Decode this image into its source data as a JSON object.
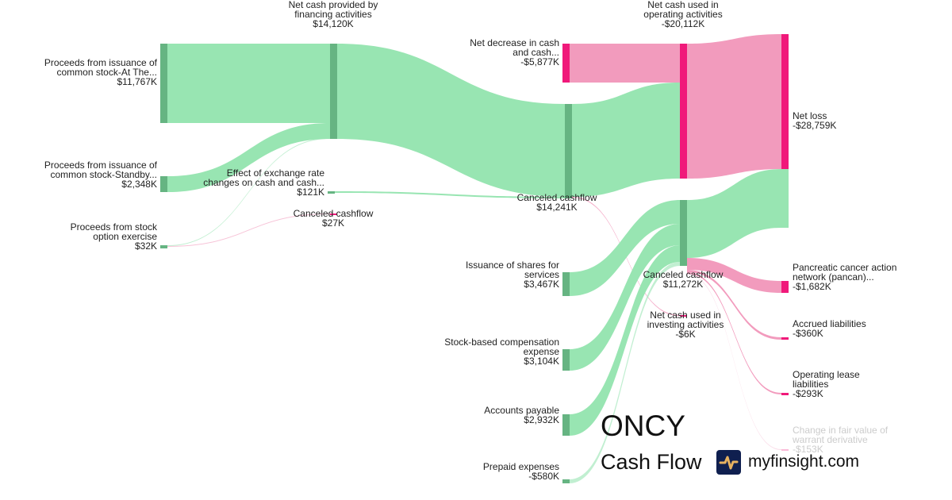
{
  "chart_data": {
    "type": "sankey",
    "title": "ONCY",
    "subtitle": "Cash Flow",
    "colors": {
      "inflow_link": "#98e5b2",
      "inflow_node": "#66b482",
      "outflow_link": "#f29bbd",
      "outflow_node": "#f0197a"
    },
    "nodes": [
      {
        "id": "atm",
        "lines": [
          "Proceeds from issuance of",
          "common stock-At The..."
        ],
        "value": "$11,767K"
      },
      {
        "id": "standby",
        "lines": [
          "Proceeds from issuance of",
          "common stock-Standby..."
        ],
        "value": "$2,348K"
      },
      {
        "id": "option",
        "lines": [
          "Proceeds from stock",
          "option exercise"
        ],
        "value": "$32K"
      },
      {
        "id": "financing",
        "lines": [
          "Net cash provided by",
          "financing activities"
        ],
        "value": "$14,120K"
      },
      {
        "id": "fx",
        "lines": [
          "Effect of exchange rate",
          "changes on cash and cash..."
        ],
        "value": "$121K"
      },
      {
        "id": "canceled27",
        "lines": [
          "Canceled cashflow"
        ],
        "value": "$27K"
      },
      {
        "id": "decrease",
        "lines": [
          "Net decrease in cash",
          "and cash..."
        ],
        "value": "-$5,877K"
      },
      {
        "id": "canceled14241",
        "lines": [
          "Canceled cashflow"
        ],
        "value": "$14,241K"
      },
      {
        "id": "issuance",
        "lines": [
          "Issuance of shares for",
          "services"
        ],
        "value": "$3,467K"
      },
      {
        "id": "sbc",
        "lines": [
          "Stock-based compensation",
          "expense"
        ],
        "value": "$3,104K"
      },
      {
        "id": "ap",
        "lines": [
          "Accounts payable"
        ],
        "value": "$2,932K"
      },
      {
        "id": "prepaid",
        "lines": [
          "Prepaid expenses"
        ],
        "value": "-$580K"
      },
      {
        "id": "operating",
        "lines": [
          "Net cash used in",
          "operating activities"
        ],
        "value": "-$20,112K"
      },
      {
        "id": "canceled11272",
        "lines": [
          "Canceled cashflow"
        ],
        "value": "$11,272K"
      },
      {
        "id": "investing",
        "lines": [
          "Net cash used in",
          "investing activities"
        ],
        "value": "-$6K"
      },
      {
        "id": "netloss",
        "lines": [
          "Net loss"
        ],
        "value": "-$28,759K"
      },
      {
        "id": "pancan",
        "lines": [
          "Pancreatic cancer action",
          "network (pancan)..."
        ],
        "value": "-$1,682K"
      },
      {
        "id": "accrued",
        "lines": [
          "Accrued liabilities"
        ],
        "value": "-$360K"
      },
      {
        "id": "lease",
        "lines": [
          "Operating lease",
          "liabilities"
        ],
        "value": "-$293K"
      },
      {
        "id": "warrant",
        "lines": [
          "Change in fair value of",
          "warrant derivative"
        ],
        "value": "-$153K"
      }
    ],
    "links": [
      {
        "source": "atm",
        "target": "financing",
        "value": 11767
      },
      {
        "source": "standby",
        "target": "financing",
        "value": 2348
      },
      {
        "source": "option",
        "target": "financing",
        "value": 5
      },
      {
        "source": "option",
        "target": "canceled27",
        "value": 27
      },
      {
        "source": "financing",
        "target": "canceled14241",
        "value": 14120
      },
      {
        "source": "fx",
        "target": "canceled14241",
        "value": 121
      },
      {
        "source": "decrease",
        "target": "operating",
        "value": 5877
      },
      {
        "source": "canceled14241",
        "target": "operating",
        "value": 14235
      },
      {
        "source": "canceled14241",
        "target": "investing",
        "value": 6
      },
      {
        "source": "operating",
        "target": "netloss",
        "value": 20112
      },
      {
        "source": "issuance",
        "target": "canceled11272",
        "value": 3467
      },
      {
        "source": "sbc",
        "target": "canceled11272",
        "value": 3104
      },
      {
        "source": "ap",
        "target": "canceled11272",
        "value": 2932
      },
      {
        "source": "prepaid",
        "target": "canceled11272",
        "value": 580
      },
      {
        "source": "canceled11272",
        "target": "netloss",
        "value": 8647
      },
      {
        "source": "canceled11272",
        "target": "pancan",
        "value": 1682
      },
      {
        "source": "canceled11272",
        "target": "accrued",
        "value": 360
      },
      {
        "source": "canceled11272",
        "target": "lease",
        "value": 293
      },
      {
        "source": "canceled11272",
        "target": "warrant",
        "value": 153
      }
    ]
  },
  "branding": {
    "ticker": "ONCY",
    "subtitle": "Cash Flow",
    "site": "myfinsight.com",
    "logo_icon": "pulse-icon"
  }
}
